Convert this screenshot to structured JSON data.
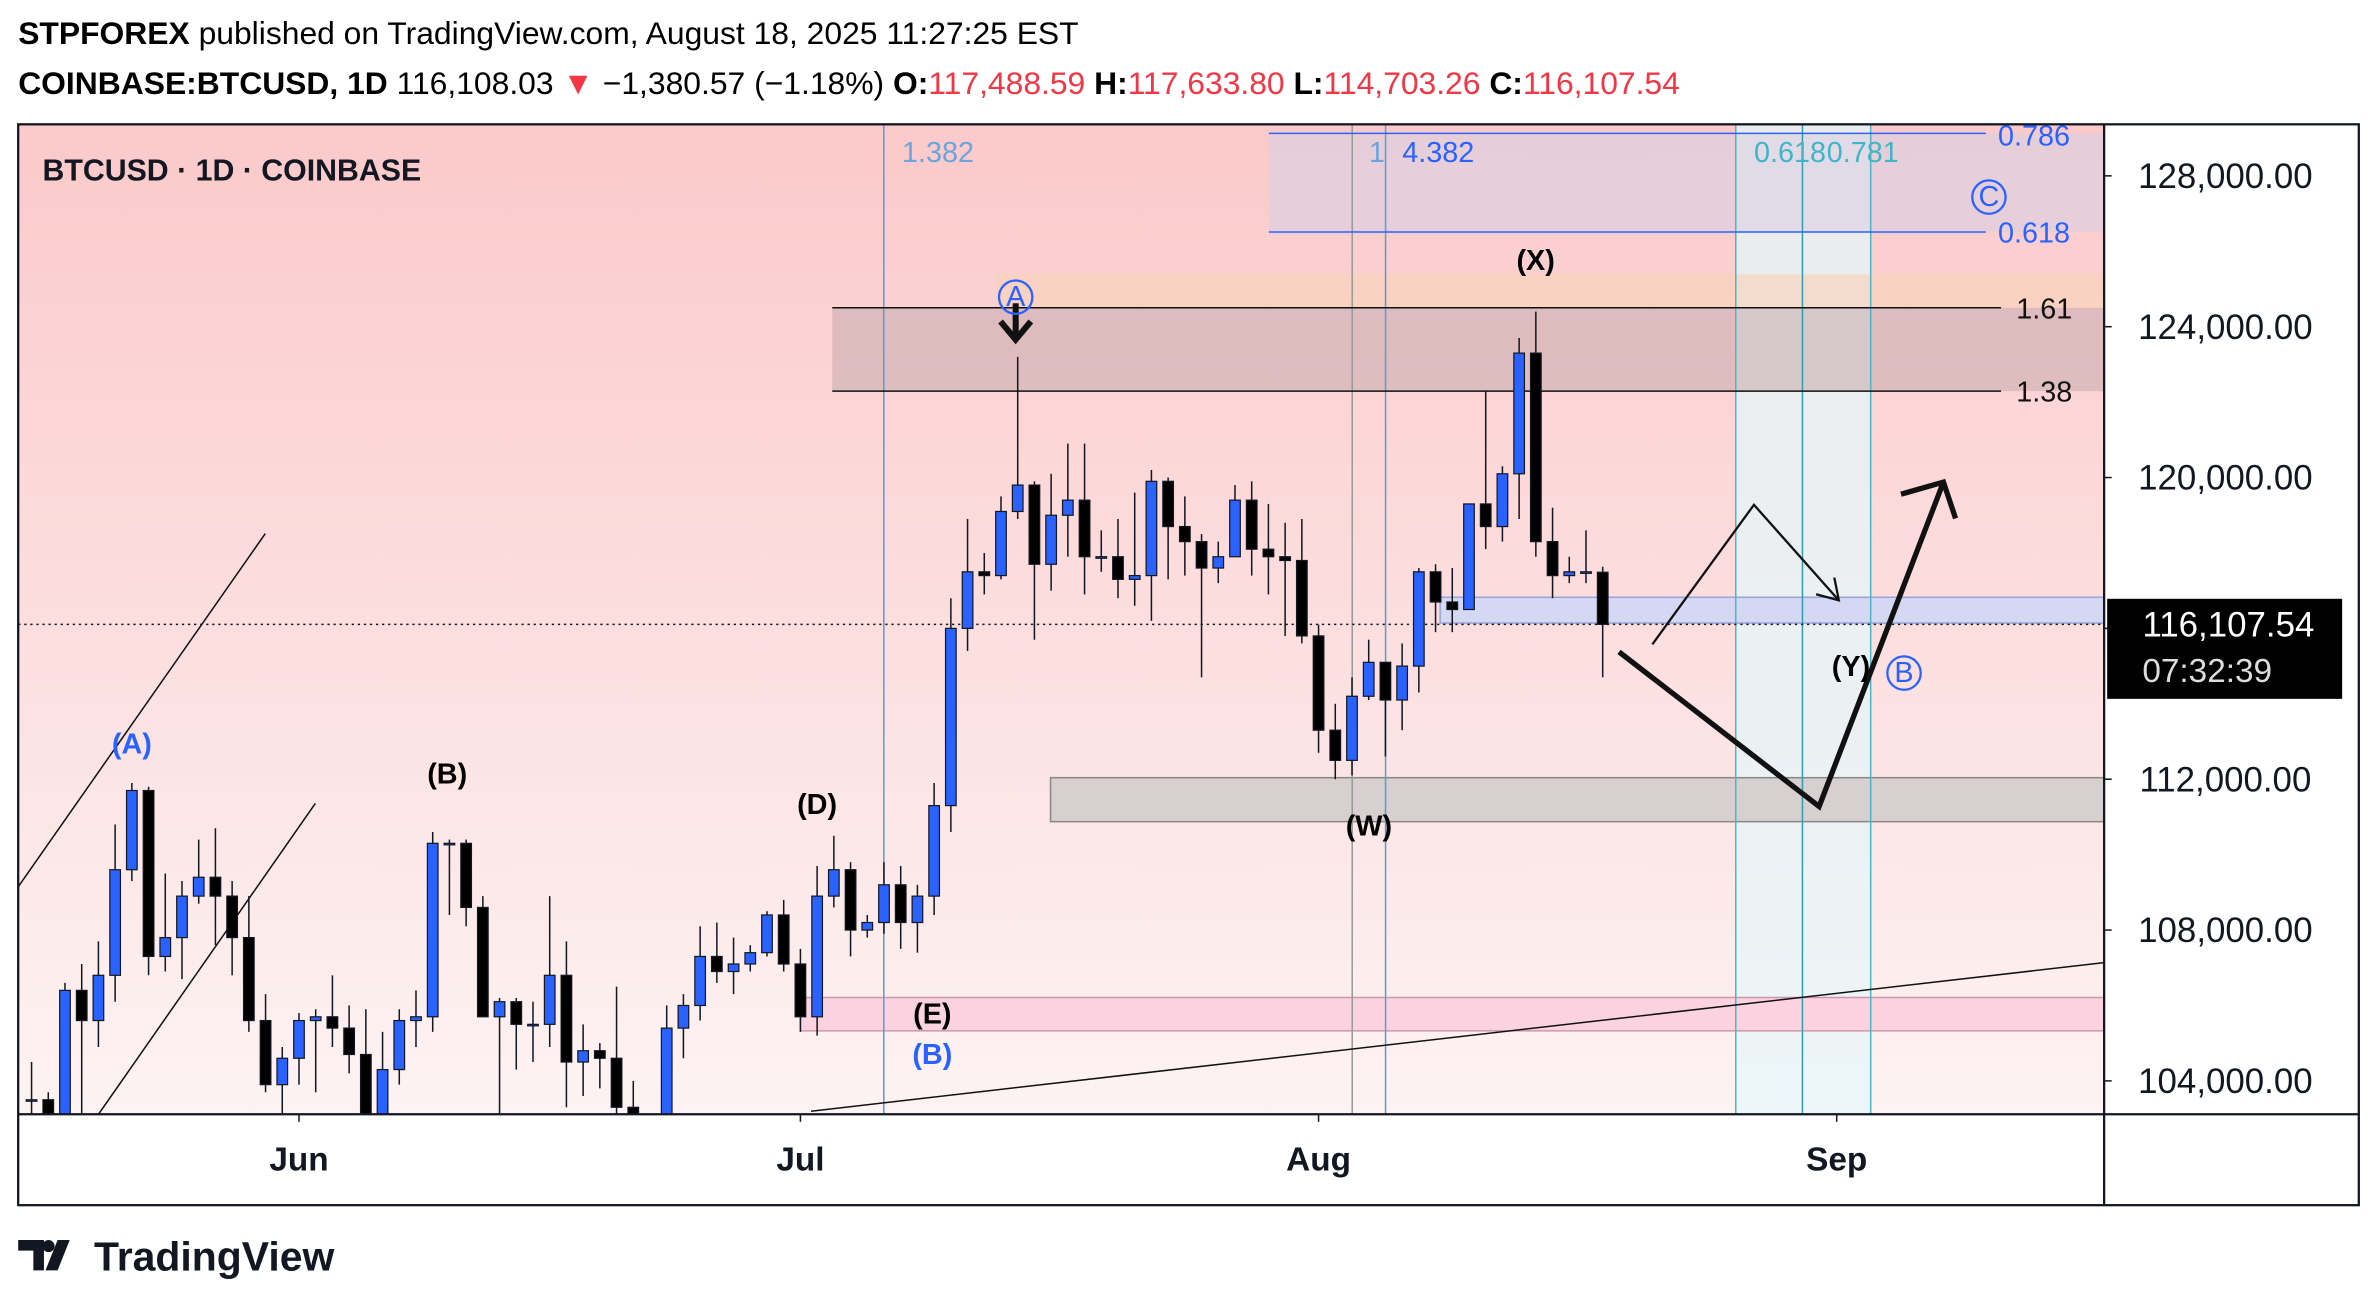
{
  "header": {
    "author": "STPFOREX",
    "published": "published on TradingView.com, August 18, 2025 11:27:25 EST",
    "symbol": "COINBASE:BTCUSD, 1D",
    "price": "116,108.03",
    "arrow": "▼",
    "change": "−1,380.57 (−1.18%)",
    "ohlc": [
      {
        "key": "O:",
        "value": "117,488.59"
      },
      {
        "key": "H:",
        "value": "117,633.80"
      },
      {
        "key": "L:",
        "value": "114,703.26"
      },
      {
        "key": "C:",
        "value": "116,107.54"
      }
    ]
  },
  "chart_data": {
    "type": "candlestick",
    "title": "BTCUSD · 1D · COINBASE",
    "up_color": "#2962ff",
    "down_color": "#000000",
    "open": [
      103.5,
      103.5,
      103.1,
      106.4,
      105.6,
      106.8,
      109.6,
      111.7,
      107.3,
      107.8,
      108.9,
      109.4,
      108.9,
      107.8,
      105.6,
      103.9,
      104.6,
      105.6,
      105.7,
      105.4,
      104.7,
      101.6,
      104.3,
      105.6,
      105.7,
      110.3,
      110.3,
      108.6,
      105.7,
      106.1,
      105.5,
      105.5,
      106.8,
      104.5,
      104.8,
      104.6,
      103.3,
      102.2,
      100.9,
      105.4,
      106.0,
      107.3,
      106.9,
      107.1,
      107.4,
      108.4,
      107.1,
      105.7,
      108.9,
      109.6,
      108.0,
      108.2,
      109.2,
      108.2,
      108.9,
      111.3,
      116.0,
      117.5,
      117.4,
      119.1,
      119.8,
      117.7,
      119.0,
      119.4,
      117.9,
      117.9,
      117.3,
      117.4,
      119.9,
      118.7,
      118.3,
      117.6,
      117.9,
      119.4,
      118.1,
      117.9,
      117.8,
      115.8,
      113.3,
      112.5,
      114.2,
      115.1,
      114.1,
      115.0,
      117.5,
      116.7,
      116.5,
      119.3,
      118.7,
      120.1,
      123.3,
      118.3,
      117.4,
      117.5,
      117.48859
    ],
    "high": [
      104.5,
      103.7,
      106.6,
      107.1,
      107.7,
      110.8,
      111.9,
      111.8,
      109.5,
      109.3,
      110.4,
      110.7,
      109.3,
      108.9,
      106.3,
      104.9,
      105.8,
      105.9,
      106.8,
      106.0,
      105.9,
      105.3,
      105.9,
      106.4,
      110.6,
      110.4,
      110.4,
      108.9,
      106.2,
      106.2,
      106.1,
      108.9,
      107.7,
      105.5,
      105.0,
      106.5,
      104.0,
      103.0,
      106.0,
      106.3,
      108.1,
      108.2,
      107.8,
      107.6,
      108.5,
      108.8,
      107.5,
      109.7,
      110.5,
      109.8,
      108.4,
      109.8,
      109.7,
      109.2,
      111.9,
      116.8,
      118.9,
      118.0,
      119.5,
      123.2,
      119.9,
      120.1,
      120.9,
      120.9,
      118.6,
      118.9,
      119.6,
      120.2,
      120.0,
      119.5,
      118.5,
      118.3,
      119.8,
      119.9,
      119.3,
      118.8,
      118.9,
      116.1,
      114.0,
      114.7,
      115.7,
      115.1,
      115.6,
      117.6,
      117.7,
      117.6,
      119.3,
      122.3,
      120.3,
      123.7,
      124.4,
      119.2,
      117.9,
      118.6,
      117.6338
    ],
    "low": [
      103.0,
      102.6,
      103.1,
      102.1,
      104.9,
      106.1,
      109.3,
      106.8,
      106.9,
      106.7,
      108.7,
      107.6,
      106.8,
      105.3,
      103.7,
      103.1,
      103.9,
      103.7,
      104.9,
      104.2,
      100.4,
      101.2,
      103.9,
      104.9,
      105.3,
      108.4,
      108.1,
      105.7,
      102.8,
      104.3,
      104.5,
      104.9,
      103.3,
      103.6,
      103.8,
      102.3,
      101.0,
      98.2,
      99.6,
      104.6,
      105.6,
      106.6,
      106.3,
      106.9,
      107.3,
      106.9,
      105.3,
      105.2,
      108.6,
      107.3,
      107.8,
      107.9,
      107.5,
      107.4,
      108.4,
      110.6,
      115.4,
      116.9,
      117.3,
      118.9,
      115.7,
      117.0,
      117.9,
      116.9,
      117.5,
      116.8,
      116.6,
      116.2,
      117.3,
      117.4,
      114.7,
      117.2,
      117.9,
      117.4,
      116.9,
      115.8,
      115.6,
      112.7,
      112.0,
      112.1,
      114.1,
      112.6,
      113.3,
      114.3,
      115.9,
      115.9,
      116.5,
      118.1,
      118.3,
      118.9,
      117.9,
      116.8,
      117.2,
      117.2,
      114.70326
    ],
    "close": [
      103.5,
      103.1,
      106.4,
      105.6,
      106.8,
      109.6,
      111.7,
      107.3,
      107.8,
      108.9,
      109.4,
      108.9,
      107.8,
      105.6,
      103.9,
      104.6,
      105.6,
      105.7,
      105.4,
      104.7,
      101.6,
      104.3,
      105.6,
      105.7,
      110.3,
      110.3,
      108.6,
      105.7,
      106.1,
      105.5,
      105.5,
      106.8,
      104.5,
      104.8,
      104.6,
      103.3,
      102.2,
      100.9,
      105.4,
      106.0,
      107.3,
      106.9,
      107.1,
      107.4,
      108.4,
      107.1,
      105.7,
      108.9,
      109.6,
      108.0,
      108.2,
      109.2,
      108.2,
      108.9,
      111.3,
      116.0,
      117.5,
      117.4,
      119.1,
      119.8,
      117.7,
      119.0,
      119.4,
      117.9,
      117.9,
      117.3,
      117.4,
      119.9,
      118.7,
      118.3,
      117.6,
      117.9,
      119.4,
      118.1,
      117.9,
      117.8,
      115.8,
      113.3,
      112.5,
      114.2,
      115.1,
      114.1,
      115.0,
      117.5,
      116.7,
      116.5,
      119.3,
      118.7,
      120.1,
      123.3,
      118.3,
      117.4,
      117.5,
      117.5,
      116.10754
    ],
    "ylim": [
      103.116,
      129.367
    ],
    "yticks": [
      {
        "value": 104,
        "label": "104,000.00"
      },
      {
        "value": 108,
        "label": "108,000.00"
      },
      {
        "value": 112,
        "label": "112,000.00"
      },
      {
        "value": 116,
        "label": "116,000.00"
      },
      {
        "value": 120,
        "label": "120,000.00"
      },
      {
        "value": 124,
        "label": "124,000.00"
      },
      {
        "value": 128,
        "label": "128,000.00"
      }
    ],
    "xlim": [
      -0.8,
      124
    ],
    "xticks": [
      {
        "value": 16,
        "label": "Jun"
      },
      {
        "value": 46,
        "label": "Jul"
      },
      {
        "value": 77,
        "label": "Aug"
      },
      {
        "value": 108,
        "label": "Sep"
      }
    ],
    "last_price": {
      "value": 116.10754,
      "label": "116,107.54"
    },
    "countdown": "07:32:39",
    "annotations": [
      "1.382",
      "1",
      "4.382",
      "0.618",
      "0.781",
      "0.786",
      "0.618",
      "1.61",
      "1.38",
      "(X)",
      "(W)",
      "(Y)",
      "(A)",
      "(B)",
      "(D)",
      "(E)",
      "(B)",
      "A",
      "C",
      "B"
    ]
  },
  "footer": "TradingView"
}
